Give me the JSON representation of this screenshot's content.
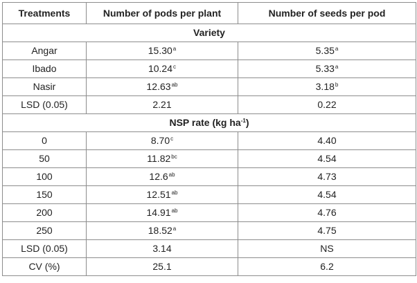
{
  "table": {
    "headers": [
      "Treatments",
      "Number of pods per plant",
      "Number of seeds per pod"
    ],
    "variety_section": "Variety",
    "variety_rows": [
      {
        "treatment": "Angar",
        "pods": "15.30",
        "pods_sup": "a",
        "seeds": "5.35",
        "seeds_sup": "a"
      },
      {
        "treatment": "Ibado",
        "pods": "10.24",
        "pods_sup": "c",
        "seeds": "5.33",
        "seeds_sup": "a"
      },
      {
        "treatment": "Nasir",
        "pods": "12.63",
        "pods_sup": "ab",
        "seeds": "3.18",
        "seeds_sup": "b"
      },
      {
        "treatment": "LSD (0.05)",
        "pods": "2.21",
        "pods_sup": "",
        "seeds": "0.22",
        "seeds_sup": ""
      }
    ],
    "nsp_section": {
      "prefix": "NSP rate (kg ha",
      "sup": "-1",
      "suffix": ")"
    },
    "nsp_rows": [
      {
        "treatment": "0",
        "pods": "8.70",
        "pods_sup": "c",
        "seeds": "4.40",
        "seeds_sup": ""
      },
      {
        "treatment": "50",
        "pods": "11.82",
        "pods_sup": "bc",
        "seeds": "4.54",
        "seeds_sup": ""
      },
      {
        "treatment": "100",
        "pods": "12.6",
        "pods_sup": "ab",
        "seeds": "4.73",
        "seeds_sup": ""
      },
      {
        "treatment": "150",
        "pods": "12.51",
        "pods_sup": "ab",
        "seeds": "4.54",
        "seeds_sup": ""
      },
      {
        "treatment": "200",
        "pods": "14.91",
        "pods_sup": "ab",
        "seeds": "4.76",
        "seeds_sup": ""
      },
      {
        "treatment": "250",
        "pods": "18.52",
        "pods_sup": "a",
        "seeds": "4.75",
        "seeds_sup": ""
      },
      {
        "treatment": "LSD (0.05)",
        "pods": "3.14",
        "pods_sup": "",
        "seeds": "NS",
        "seeds_sup": ""
      },
      {
        "treatment": "CV (%)",
        "pods": "25.1",
        "pods_sup": "",
        "seeds": "6.2",
        "seeds_sup": ""
      }
    ]
  }
}
